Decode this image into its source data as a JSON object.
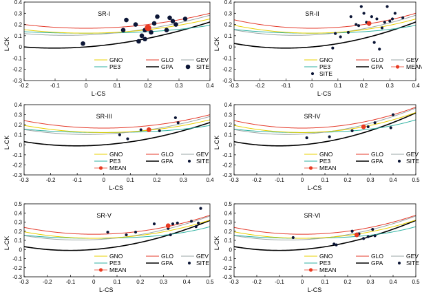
{
  "figure": {
    "colors": {
      "GNO": "#e8d000",
      "GLO": "#e43a2a",
      "GEV": "#9aa6a6",
      "PE3": "#2fb2a2",
      "GPA": "#000000",
      "SITE": "#0c1636",
      "MEAN": "#e83a22"
    }
  },
  "chart_data": [
    {
      "type": "scatter",
      "title": "SR-I",
      "xlabel": "L-CS",
      "ylabel": "L-CK",
      "xlim": [
        -0.2,
        0.4
      ],
      "ylim": [
        -0.3,
        0.4
      ],
      "xticks": [
        "-0.2",
        "-0.1",
        "0",
        "0.1",
        "0.2",
        "0.3",
        "0.4"
      ],
      "yticks": [
        "-0.3",
        "-0.2",
        "-0.1",
        "0",
        "0.1",
        "0.2",
        "0.3",
        "0.4"
      ],
      "legend": [
        "GNO",
        "GLO",
        "GEV",
        "PE3",
        "GPA",
        "SITE"
      ],
      "legend_glyphs": [
        "line",
        "line",
        "line",
        "line",
        "line",
        "bigdot"
      ],
      "legend_labels": [
        "GNO",
        "GLO",
        "GEV",
        "PE3",
        "GPA",
        "SITE"
      ],
      "legend_position": "bottom-right",
      "sites": [
        [
          -0.01,
          0.03
        ],
        [
          0.12,
          0.15
        ],
        [
          0.13,
          0.24
        ],
        [
          0.16,
          0.2
        ],
        [
          0.17,
          0.05
        ],
        [
          0.18,
          0.1
        ],
        [
          0.19,
          0.07
        ],
        [
          0.19,
          0.15
        ],
        [
          0.21,
          0.13
        ],
        [
          0.22,
          0.21
        ],
        [
          0.23,
          0.27
        ],
        [
          0.26,
          0.15
        ],
        [
          0.27,
          0.26
        ],
        [
          0.28,
          0.23
        ],
        [
          0.29,
          0.2
        ],
        [
          0.32,
          0.25
        ]
      ],
      "site_marker": "big",
      "mean": [
        0.2,
        0.17
      ]
    },
    {
      "type": "scatter",
      "title": "SR-II",
      "xlabel": "L-CS",
      "ylabel": "L-CK",
      "xlim": [
        -0.3,
        0.4
      ],
      "ylim": [
        -0.3,
        0.4
      ],
      "xticks": [
        "-0.3",
        "-0.2",
        "-0.1",
        "0",
        "0.1",
        "0.2",
        "0.3",
        "0.4"
      ],
      "yticks": [
        "-0.3",
        "-0.2",
        "-0.1",
        "0",
        "0.1",
        "0.2",
        "0.3",
        "0.4"
      ],
      "legend": [
        "GNO",
        "GLO",
        "GEV",
        "PE3",
        "GPA",
        "MEAN",
        "SITE"
      ],
      "legend_glyphs": [
        "line",
        "line",
        "line",
        "line",
        "line",
        "mean",
        "dot"
      ],
      "legend_labels": [
        "GNO",
        "GLO",
        "GEV",
        "PE3",
        "GPA",
        "MEAN",
        "SITE"
      ],
      "legend_position": "bottom-right",
      "sites": [
        [
          0.08,
          -0.01
        ],
        [
          0.09,
          0.12
        ],
        [
          0.11,
          0.09
        ],
        [
          0.14,
          0.13
        ],
        [
          0.15,
          0.27
        ],
        [
          0.17,
          0.2
        ],
        [
          0.18,
          0.19
        ],
        [
          0.19,
          0.36
        ],
        [
          0.2,
          0.3
        ],
        [
          0.21,
          0.22
        ],
        [
          0.22,
          0.2
        ],
        [
          0.23,
          0.27
        ],
        [
          0.24,
          0.04
        ],
        [
          0.25,
          0.25
        ],
        [
          0.26,
          -0.02
        ],
        [
          0.27,
          0.17
        ],
        [
          0.28,
          0.22
        ],
        [
          0.29,
          0.36
        ],
        [
          0.3,
          0.23
        ],
        [
          0.31,
          0.25
        ],
        [
          0.32,
          0.3
        ],
        [
          0.35,
          0.26
        ]
      ],
      "site_marker": "small",
      "mean": [
        0.22,
        0.21
      ]
    },
    {
      "type": "scatter",
      "title": "SR-III",
      "xlabel": "L-CS",
      "ylabel": "L-CK",
      "xlim": [
        -0.3,
        0.4
      ],
      "ylim": [
        -0.3,
        0.4
      ],
      "xticks": [
        "-0.3",
        "-0.2",
        "-0.1",
        "0",
        "0.1",
        "0.2",
        "0.3",
        "0.4"
      ],
      "yticks": [
        "-0.3",
        "-0.2",
        "-0.1",
        "0",
        "0.1",
        "0.2",
        "0.3",
        "0.4"
      ],
      "legend": [
        "GNO",
        "GLO",
        "GEV",
        "PE3",
        "GPA",
        "SITE",
        "MEAN"
      ],
      "legend_glyphs": [
        "line",
        "line",
        "line",
        "line",
        "line",
        "dot",
        "mean"
      ],
      "legend_labels": [
        "GNO",
        "GLO",
        "GEV",
        "PE3",
        "GPA",
        "SITE",
        "MEAN"
      ],
      "legend_position": "bottom-right",
      "sites": [
        [
          0.06,
          0.1
        ],
        [
          0.09,
          0.06
        ],
        [
          0.14,
          0.15
        ],
        [
          0.17,
          0.16
        ],
        [
          0.21,
          0.14
        ],
        [
          0.27,
          0.27
        ],
        [
          0.28,
          0.22
        ]
      ],
      "site_marker": "small",
      "mean": [
        0.17,
        0.15
      ]
    },
    {
      "type": "scatter",
      "title": "SR-IV",
      "xlabel": "L-CS",
      "ylabel": "L-CK",
      "xlim": [
        -0.3,
        0.5
      ],
      "ylim": [
        -0.3,
        0.4
      ],
      "xticks": [
        "-0.3",
        "-0.2",
        "-0.1",
        "0",
        "0.1",
        "0.2",
        "0.3",
        "0.4",
        "0.5"
      ],
      "yticks": [
        "-0.3",
        "-0.2",
        "-0.1",
        "0",
        "0.1",
        "0.2",
        "0.3",
        "0.4"
      ],
      "legend": [
        "GNO",
        "GLO",
        "GEV",
        "PE3",
        "GPA",
        "SITE",
        "MEAN"
      ],
      "legend_glyphs": [
        "line",
        "line",
        "line",
        "line",
        "line",
        "dot",
        "mean"
      ],
      "legend_labels": [
        "GNO",
        "GLO",
        "GEV",
        "PE3",
        "GPA",
        "SITE",
        "MEAN"
      ],
      "legend_position": "bottom-right",
      "sites": [
        [
          0.02,
          0.07
        ],
        [
          0.12,
          0.08
        ],
        [
          0.22,
          0.14
        ],
        [
          0.29,
          0.18
        ],
        [
          0.32,
          0.22
        ],
        [
          0.39,
          0.17
        ],
        [
          0.4,
          0.3
        ]
      ],
      "site_marker": "small",
      "mean": [
        0.27,
        0.18
      ]
    },
    {
      "type": "scatter",
      "title": "SR-V",
      "xlabel": "L-CS",
      "ylabel": "L-CK",
      "xlim": [
        -0.3,
        0.5
      ],
      "ylim": [
        -0.3,
        0.5
      ],
      "xticks": [
        "-0.3",
        "-0.2",
        "-0.1",
        "0",
        "0.1",
        "0.2",
        "0.3",
        "0.4",
        "0.5"
      ],
      "yticks": [
        "-0.3",
        "-0.2",
        "-0.1",
        "0",
        "0.1",
        "0.2",
        "0.3",
        "0.4",
        "0.5"
      ],
      "legend": [
        "GNO",
        "GLO",
        "GEV",
        "PE3",
        "GPA",
        "SITE",
        "MEAN"
      ],
      "legend_glyphs": [
        "line",
        "line",
        "line",
        "line",
        "line",
        "dot",
        "mean"
      ],
      "legend_labels": [
        "GNO",
        "GLO",
        "GEV",
        "PE3",
        "GPA",
        "SITE",
        "MEAN"
      ],
      "legend_position": "bottom-right",
      "sites": [
        [
          0.06,
          0.19
        ],
        [
          0.14,
          0.16
        ],
        [
          0.18,
          0.19
        ],
        [
          0.26,
          0.28
        ],
        [
          0.32,
          0.23
        ],
        [
          0.33,
          0.16
        ],
        [
          0.34,
          0.28
        ],
        [
          0.36,
          0.29
        ],
        [
          0.42,
          0.31
        ],
        [
          0.44,
          0.25
        ],
        [
          0.45,
          0.29
        ],
        [
          0.46,
          0.45
        ]
      ],
      "site_marker": "small",
      "mean": [
        0.32,
        0.26
      ]
    },
    {
      "type": "scatter",
      "title": "SR-VI",
      "xlabel": "L-CS",
      "ylabel": "L-CK",
      "xlim": [
        -0.3,
        0.5
      ],
      "ylim": [
        -0.3,
        0.5
      ],
      "xticks": [
        "-0.3",
        "-0.2",
        "-0.1",
        "0",
        "0.1",
        "0.2",
        "0.3",
        "0.4",
        "0.5"
      ],
      "yticks": [
        "-0.3",
        "-0.2",
        "-0.1",
        "0",
        "0.1",
        "0.2",
        "0.3",
        "0.4",
        "0.5"
      ],
      "legend": [
        "GNO",
        "GLO",
        "GEV",
        "PE3",
        "GPA",
        "SITE",
        "MEAN"
      ],
      "legend_glyphs": [
        "line",
        "line",
        "line",
        "line",
        "line",
        "dot",
        "mean"
      ],
      "legend_labels": [
        "GNO",
        "GLO",
        "GEV",
        "PE3",
        "GPA",
        "SITE",
        "MEAN"
      ],
      "legend_position": "bottom-right",
      "sites": [
        [
          -0.04,
          0.13
        ],
        [
          0.14,
          0.06
        ],
        [
          0.15,
          0.05
        ],
        [
          0.22,
          0.2
        ],
        [
          0.25,
          0.17
        ],
        [
          0.27,
          0.12
        ],
        [
          0.29,
          0.14
        ],
        [
          0.31,
          0.22
        ],
        [
          0.32,
          0.15
        ]
      ],
      "site_marker": "small",
      "mean": [
        0.24,
        0.16
      ]
    }
  ]
}
